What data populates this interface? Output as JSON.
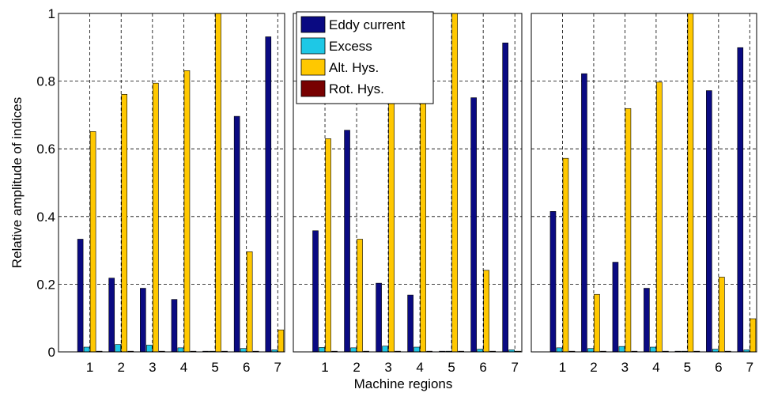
{
  "chart_data": {
    "type": "bar",
    "xlabel": "Machine regions",
    "ylabel": "Relative amplitude of indices",
    "ylim": [
      0,
      1
    ],
    "yticks": [
      "0",
      "0.2",
      "0.4",
      "0.6",
      "0.8",
      "1"
    ],
    "grid": true,
    "legend_position": "top-left of middle panel",
    "categories": [
      "1",
      "2",
      "3",
      "4",
      "5",
      "6",
      "7"
    ],
    "series_meta": [
      {
        "name": "Eddy current",
        "color": "#0a0a82"
      },
      {
        "name": "Excess",
        "color": "#1ec8e6"
      },
      {
        "name": "Alt. Hys.",
        "color": "#ffc800"
      },
      {
        "name": "Rot. Hys.",
        "color": "#780000"
      }
    ],
    "panels": [
      {
        "series": [
          {
            "name": "Eddy current",
            "values": [
              0.333,
              0.218,
              0.188,
              0.155,
              0.002,
              0.696,
              0.931
            ]
          },
          {
            "name": "Excess",
            "values": [
              0.014,
              0.022,
              0.02,
              0.012,
              0.002,
              0.01,
              0.006
            ]
          },
          {
            "name": "Alt. Hys.",
            "values": [
              0.651,
              0.761,
              0.794,
              0.831,
              1.0,
              0.296,
              0.065
            ]
          },
          {
            "name": "Rot. Hys.",
            "values": [
              0.002,
              0.002,
              0.002,
              0.002,
              0.002,
              0.002,
              0.002
            ]
          }
        ]
      },
      {
        "series": [
          {
            "name": "Eddy current",
            "values": [
              0.358,
              0.655,
              0.203,
              0.168,
              0.002,
              0.751,
              0.913
            ]
          },
          {
            "name": "Excess",
            "values": [
              0.013,
              0.012,
              0.017,
              0.014,
              0.002,
              0.008,
              0.006
            ]
          },
          {
            "name": "Alt. Hys.",
            "values": [
              0.63,
              0.333,
              0.735,
              0.76,
              1.0,
              0.241,
              0.002
            ]
          },
          {
            "name": "Rot. Hys.",
            "values": [
              0.002,
              0.002,
              0.002,
              0.002,
              0.002,
              0.002,
              0.002
            ]
          }
        ]
      },
      {
        "series": [
          {
            "name": "Eddy current",
            "values": [
              0.415,
              0.822,
              0.265,
              0.188,
              0.002,
              0.772,
              0.899
            ]
          },
          {
            "name": "Excess",
            "values": [
              0.012,
              0.01,
              0.016,
              0.014,
              0.002,
              0.008,
              0.006
            ]
          },
          {
            "name": "Alt. Hys.",
            "values": [
              0.572,
              0.17,
              0.719,
              0.797,
              1.0,
              0.221,
              0.098
            ]
          },
          {
            "name": "Rot. Hys.",
            "values": [
              0.002,
              0.002,
              0.002,
              0.002,
              0.002,
              0.002,
              0.002
            ]
          }
        ]
      }
    ]
  }
}
